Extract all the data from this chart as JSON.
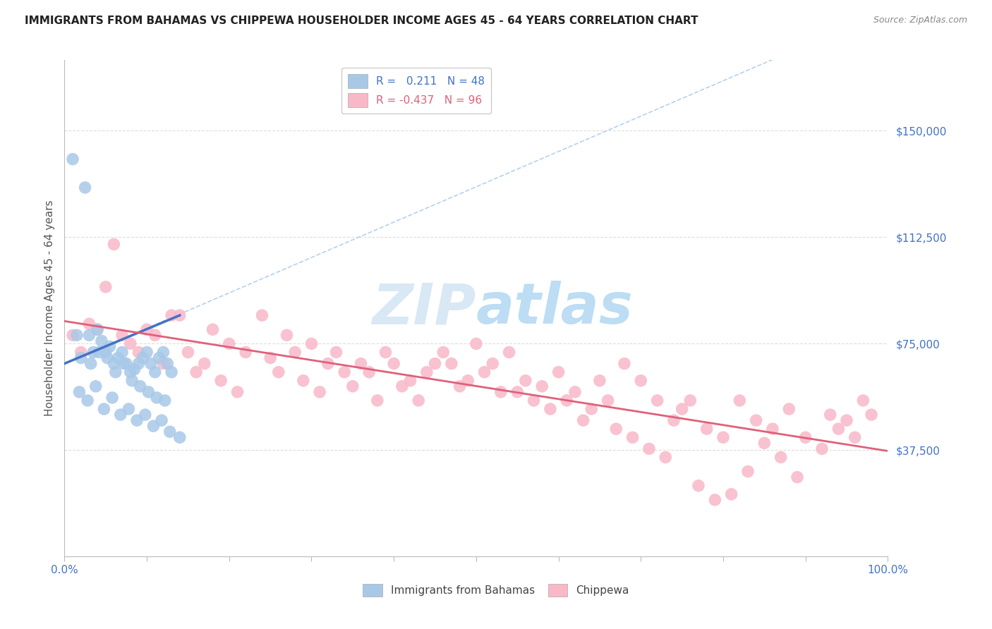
{
  "title": "IMMIGRANTS FROM BAHAMAS VS CHIPPEWA HOUSEHOLDER INCOME AGES 45 - 64 YEARS CORRELATION CHART",
  "source": "Source: ZipAtlas.com",
  "ylabel": "Householder Income Ages 45 - 64 years",
  "series1_name": "Immigrants from Bahamas",
  "series1_R": 0.211,
  "series1_N": 48,
  "series1_color": "#a8c8e8",
  "series1_line_color": "#4472c4",
  "series2_name": "Chippewa",
  "series2_R": -0.437,
  "series2_N": 96,
  "series2_color": "#f9b8c8",
  "series2_line_color": "#e0607a",
  "xmin": 0.0,
  "xmax": 100.0,
  "ymin": 0,
  "ymax": 175000,
  "yticks": [
    0,
    37500,
    75000,
    112500,
    150000
  ],
  "ytick_labels": [
    "",
    "$37,500",
    "$75,000",
    "$112,500",
    "$150,000"
  ],
  "background_color": "#ffffff",
  "watermark_text": "ZIPatlas",
  "watermark_color": "#c8dff0",
  "title_color": "#222222",
  "axis_label_color": "#555555",
  "tick_label_color": "#4472c4",
  "grid_color": "#dddddd",
  "diag_color": "#aaccee",
  "series1_x": [
    1.0,
    2.5,
    3.0,
    3.5,
    4.0,
    4.5,
    5.0,
    5.5,
    6.0,
    6.5,
    7.0,
    7.5,
    8.0,
    8.5,
    9.0,
    9.5,
    10.0,
    10.5,
    11.0,
    11.5,
    12.0,
    12.5,
    13.0,
    1.5,
    2.0,
    3.2,
    4.2,
    5.2,
    6.2,
    7.2,
    8.2,
    9.2,
    10.2,
    11.2,
    12.2,
    1.8,
    3.8,
    5.8,
    7.8,
    9.8,
    11.8,
    2.8,
    4.8,
    6.8,
    8.8,
    10.8,
    12.8,
    14.0
  ],
  "series1_y": [
    140000,
    130000,
    78000,
    72000,
    80000,
    76000,
    72000,
    74000,
    68000,
    70000,
    72000,
    68000,
    65000,
    66000,
    68000,
    70000,
    72000,
    68000,
    65000,
    70000,
    72000,
    68000,
    65000,
    78000,
    70000,
    68000,
    72000,
    70000,
    65000,
    68000,
    62000,
    60000,
    58000,
    56000,
    55000,
    58000,
    60000,
    56000,
    52000,
    50000,
    48000,
    55000,
    52000,
    50000,
    48000,
    46000,
    44000,
    42000
  ],
  "series2_x": [
    1.0,
    2.0,
    4.0,
    5.0,
    6.0,
    8.0,
    9.0,
    10.0,
    11.0,
    12.0,
    14.0,
    15.0,
    16.0,
    18.0,
    20.0,
    22.0,
    24.0,
    25.0,
    26.0,
    28.0,
    30.0,
    32.0,
    33.0,
    34.0,
    35.0,
    36.0,
    38.0,
    40.0,
    42.0,
    44.0,
    45.0,
    46.0,
    48.0,
    50.0,
    51.0,
    52.0,
    54.0,
    55.0,
    56.0,
    57.0,
    58.0,
    60.0,
    62.0,
    64.0,
    65.0,
    66.0,
    68.0,
    70.0,
    72.0,
    74.0,
    75.0,
    76.0,
    78.0,
    80.0,
    82.0,
    84.0,
    86.0,
    88.0,
    90.0,
    92.0,
    93.0,
    94.0,
    95.0,
    96.0,
    97.0,
    98.0,
    3.0,
    7.0,
    13.0,
    17.0,
    19.0,
    21.0,
    27.0,
    29.0,
    31.0,
    37.0,
    39.0,
    41.0,
    43.0,
    47.0,
    49.0,
    53.0,
    59.0,
    61.0,
    63.0,
    67.0,
    69.0,
    71.0,
    73.0,
    77.0,
    79.0,
    81.0,
    83.0,
    85.0,
    87.0,
    89.0
  ],
  "series2_y": [
    78000,
    72000,
    80000,
    95000,
    110000,
    75000,
    72000,
    80000,
    78000,
    68000,
    85000,
    72000,
    65000,
    80000,
    75000,
    72000,
    85000,
    70000,
    65000,
    72000,
    75000,
    68000,
    72000,
    65000,
    60000,
    68000,
    55000,
    68000,
    62000,
    65000,
    68000,
    72000,
    60000,
    75000,
    65000,
    68000,
    72000,
    58000,
    62000,
    55000,
    60000,
    65000,
    58000,
    52000,
    62000,
    55000,
    68000,
    62000,
    55000,
    48000,
    52000,
    55000,
    45000,
    42000,
    55000,
    48000,
    45000,
    52000,
    42000,
    38000,
    50000,
    45000,
    48000,
    42000,
    55000,
    50000,
    82000,
    78000,
    85000,
    68000,
    62000,
    58000,
    78000,
    62000,
    58000,
    65000,
    72000,
    60000,
    55000,
    68000,
    62000,
    58000,
    52000,
    55000,
    48000,
    45000,
    42000,
    38000,
    35000,
    25000,
    20000,
    22000,
    30000,
    40000,
    35000,
    28000
  ]
}
